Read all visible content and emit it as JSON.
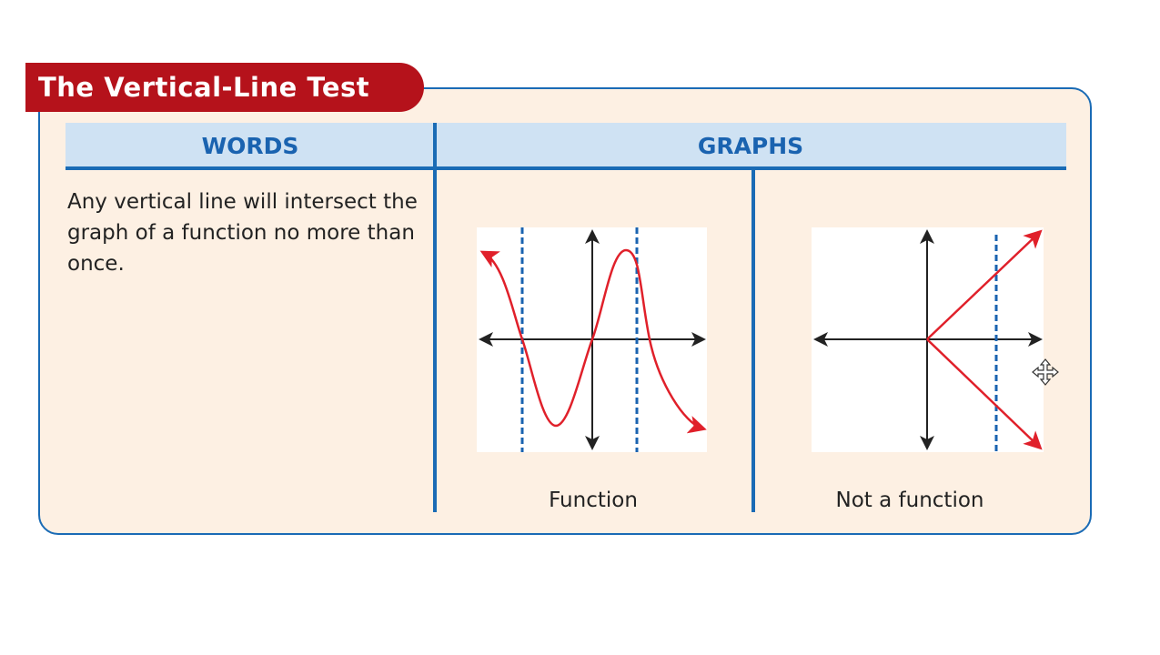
{
  "title": "The Vertical-Line Test",
  "headers": {
    "words": "WORDS",
    "graphs": "GRAPHS"
  },
  "words_text": "Any vertical line will intersect the graph of a function no more than once.",
  "graphs": [
    {
      "caption": "Function",
      "curve": "sine-like wave",
      "vertical_line_intersections": 1
    },
    {
      "caption": "Not a function",
      "curve": "sideways V opening right",
      "vertical_line_intersections": 2
    }
  ],
  "colors": {
    "title_bg": "#b5121b",
    "accent_blue": "#1a6bb5",
    "header_bg": "#cfe2f3",
    "card_bg": "#fdf0e3",
    "curve": "#e0202a",
    "test_line": "#1a63b0"
  },
  "cursor_icon": "move-cursor-icon"
}
